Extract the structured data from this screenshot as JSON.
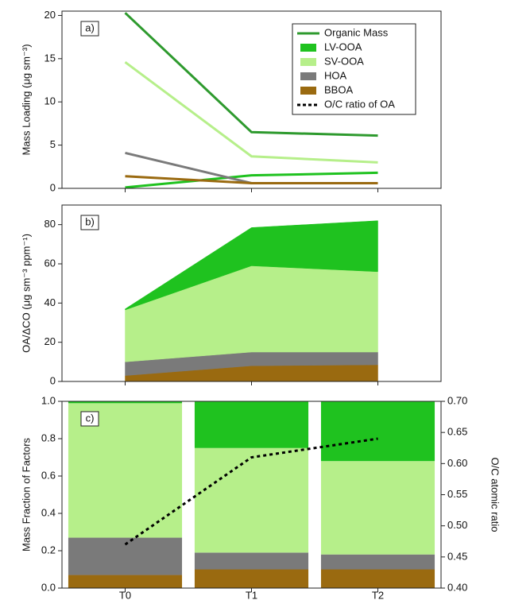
{
  "chart_data": [
    {
      "type": "line",
      "panel_label": "a)",
      "ylabel": "Mass Loading (μg sm⁻³)",
      "ylim": [
        0,
        20.5
      ],
      "yticks": [
        0,
        5,
        10,
        15,
        20
      ],
      "legend": "upper right",
      "series": [
        {
          "name": "Organic Mass",
          "color": "#2e9a2e",
          "values": [
            20.3,
            6.5,
            6.1
          ]
        },
        {
          "name": "LV-OOA",
          "color": "#1fc21f",
          "values": [
            0.1,
            1.5,
            1.8
          ]
        },
        {
          "name": "SV-OOA",
          "color": "#b6ef8a",
          "values": [
            14.6,
            3.7,
            3.0
          ]
        },
        {
          "name": "HOA",
          "color": "#7a7a7a",
          "values": [
            4.1,
            0.6,
            0.6
          ]
        },
        {
          "name": "BBOA",
          "color": "#9a6a10",
          "values": [
            1.4,
            0.6,
            0.6
          ]
        }
      ]
    },
    {
      "type": "area",
      "panel_label": "b)",
      "ylabel": "OA/ΔCO (μg sm⁻³ ppm⁻¹)",
      "ylim": [
        0,
        90
      ],
      "yticks": [
        0,
        20,
        40,
        60,
        80
      ],
      "series": [
        {
          "name": "BBOA",
          "color": "#9a6a10",
          "values": [
            3,
            8,
            8.5
          ]
        },
        {
          "name": "HOA",
          "color": "#7a7a7a",
          "values": [
            7,
            7,
            6.5
          ]
        },
        {
          "name": "SV-OOA",
          "color": "#b6ef8a",
          "values": [
            26.5,
            44,
            41
          ]
        },
        {
          "name": "LV-OOA",
          "color": "#1fc21f",
          "values": [
            0.5,
            19.5,
            26
          ]
        }
      ]
    },
    {
      "type": "bar",
      "panel_label": "c)",
      "ylabel": "Mass Fraction of Factors",
      "y2label": "O/C atomic ratio",
      "categories": [
        "T0",
        "T1",
        "T2"
      ],
      "ylim": [
        0,
        1
      ],
      "yticks": [
        {
          "value": 0,
          "label": "0.0"
        },
        {
          "value": 0.2,
          "label": "0.2"
        },
        {
          "value": 0.4,
          "label": "0.4"
        },
        {
          "value": 0.6,
          "label": "0.6"
        },
        {
          "value": 0.8,
          "label": "0.8"
        },
        {
          "value": 1,
          "label": "1.0"
        }
      ],
      "y2lim": [
        0.4,
        0.7
      ],
      "y2ticks": [
        {
          "value": 0.4,
          "label": "0.40"
        },
        {
          "value": 0.45,
          "label": "0.45"
        },
        {
          "value": 0.5,
          "label": "0.50"
        },
        {
          "value": 0.55,
          "label": "0.55"
        },
        {
          "value": 0.6,
          "label": "0.60"
        },
        {
          "value": 0.65,
          "label": "0.65"
        },
        {
          "value": 0.7,
          "label": "0.70"
        }
      ],
      "series": [
        {
          "name": "BBOA",
          "color": "#9a6a10",
          "values": [
            0.07,
            0.1,
            0.1
          ]
        },
        {
          "name": "HOA",
          "color": "#7a7a7a",
          "values": [
            0.2,
            0.09,
            0.08
          ]
        },
        {
          "name": "SV-OOA",
          "color": "#b6ef8a",
          "values": [
            0.72,
            0.56,
            0.5
          ]
        },
        {
          "name": "LV-OOA",
          "color": "#1fc21f",
          "values": [
            0.01,
            0.25,
            0.32
          ]
        },
        {
          "name": "O/C ratio of OA",
          "color": "#000000",
          "linestyle": "dotted",
          "axis": "y2",
          "values": [
            0.47,
            0.61,
            0.64
          ]
        }
      ]
    }
  ]
}
